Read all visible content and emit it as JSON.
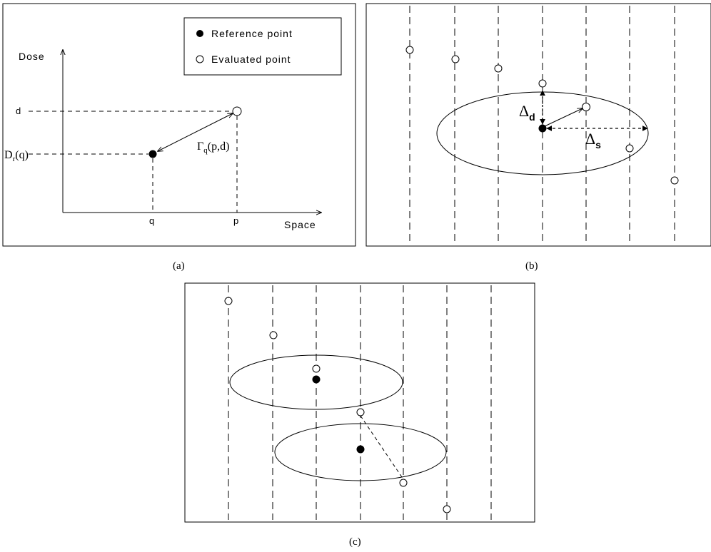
{
  "panel_a": {
    "legend": {
      "reference": "Reference point",
      "evaluated": "Evaluated point"
    },
    "y_axis_label": "Dose",
    "x_axis_label": "Space",
    "tick_d": "d",
    "tick_Dr": "D",
    "tick_Dr_sub": "r",
    "tick_Dr_arg": "(q)",
    "tick_q": "q",
    "tick_p": "p",
    "gamma_symbol": "Γ",
    "gamma_sub": "q",
    "gamma_arg": "(p,d)"
  },
  "panel_b": {
    "delta_d_symbol": "Δ",
    "delta_d_sub": "d",
    "delta_s_symbol": "Δ",
    "delta_s_sub": "s"
  },
  "captions": {
    "a": "(a)",
    "b": "(b)",
    "c": "(c)"
  }
}
